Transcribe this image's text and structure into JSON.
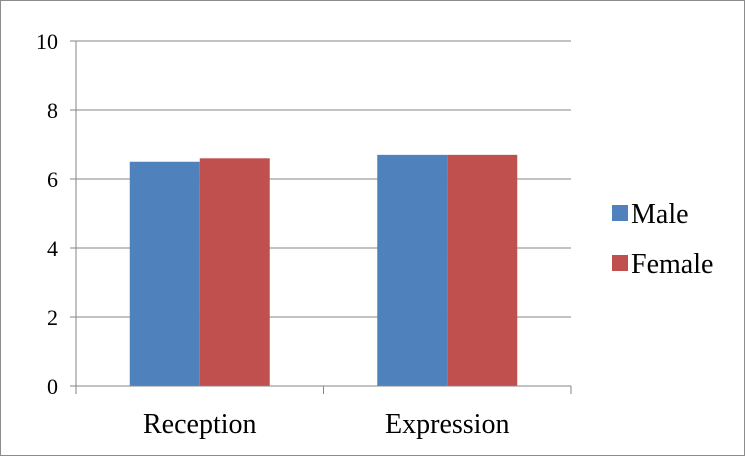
{
  "chart_data": {
    "type": "bar",
    "categories": [
      "Reception",
      "Expression"
    ],
    "series": [
      {
        "name": "Male",
        "values": [
          6.5,
          6.7
        ],
        "color": "#4f81bd"
      },
      {
        "name": "Female",
        "values": [
          6.6,
          6.7
        ],
        "color": "#c0504d"
      }
    ],
    "ylim": [
      0,
      10
    ],
    "yticks": [
      "0",
      "2",
      "4",
      "6",
      "8",
      "10"
    ],
    "grid": true,
    "legend_position": "right"
  }
}
